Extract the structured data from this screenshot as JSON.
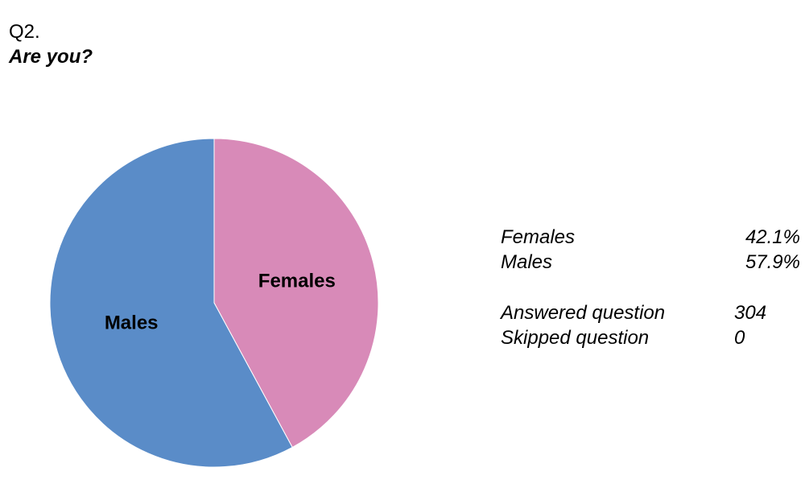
{
  "question": {
    "number": "Q2.",
    "text": "Are you?"
  },
  "chart_data": {
    "type": "pie",
    "title": "Are you?",
    "slices": [
      {
        "label": "Females",
        "value": 42.1,
        "color": "#D88AB8"
      },
      {
        "label": "Males",
        "value": 57.9,
        "color": "#5A8CC8"
      }
    ],
    "legend": "none"
  },
  "summary": {
    "percentages": [
      {
        "label": "Females",
        "value": "42.1%"
      },
      {
        "label": "Males",
        "value": "57.9%"
      }
    ],
    "counts": [
      {
        "label": "Answered question",
        "value": "304"
      },
      {
        "label": "Skipped question",
        "value": "0"
      }
    ]
  }
}
